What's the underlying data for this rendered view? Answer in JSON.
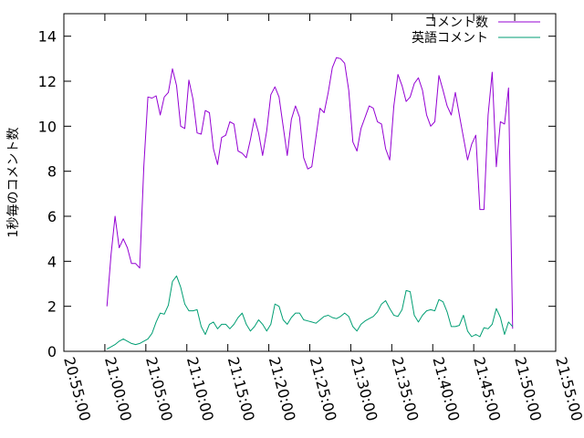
{
  "chart_data": {
    "type": "line",
    "title": "",
    "xlabel": "",
    "ylabel": "1秒毎のコメント数",
    "xlim": [
      "20:55:00",
      "21:55:00"
    ],
    "ylim": [
      0,
      15
    ],
    "x_ticks": [
      "20:55:00",
      "21:00:00",
      "21:05:00",
      "21:10:00",
      "21:15:00",
      "21:20:00",
      "21:25:00",
      "21:30:00",
      "21:35:00",
      "21:40:00",
      "21:45:00",
      "21:50:00",
      "21:55:00"
    ],
    "y_ticks": [
      "0",
      "2",
      "4",
      "6",
      "8",
      "10",
      "12",
      "14"
    ],
    "grid": false,
    "legend_position": "top-right",
    "series": [
      {
        "name": "コメント数",
        "color": "#9400d3",
        "points": [
          [
            "21:00:15",
            2.0
          ],
          [
            "21:00:45",
            4.3
          ],
          [
            "21:01:15",
            6.0
          ],
          [
            "21:01:45",
            4.6
          ],
          [
            "21:02:15",
            5.0
          ],
          [
            "21:02:45",
            4.6
          ],
          [
            "21:03:15",
            3.9
          ],
          [
            "21:03:45",
            3.9
          ],
          [
            "21:04:15",
            3.7
          ],
          [
            "21:04:45",
            8.2
          ],
          [
            "21:05:15",
            11.3
          ],
          [
            "21:05:45",
            11.25
          ],
          [
            "21:06:15",
            11.35
          ],
          [
            "21:06:45",
            10.5
          ],
          [
            "21:07:15",
            11.3
          ],
          [
            "21:07:45",
            11.5
          ],
          [
            "21:08:15",
            12.55
          ],
          [
            "21:08:45",
            11.8
          ],
          [
            "21:09:15",
            10.0
          ],
          [
            "21:09:45",
            9.9
          ],
          [
            "21:10:15",
            12.05
          ],
          [
            "21:10:45",
            11.2
          ],
          [
            "21:11:15",
            9.7
          ],
          [
            "21:11:45",
            9.65
          ],
          [
            "21:12:15",
            10.7
          ],
          [
            "21:12:45",
            10.6
          ],
          [
            "21:13:15",
            9.0
          ],
          [
            "21:13:45",
            8.3
          ],
          [
            "21:14:15",
            9.5
          ],
          [
            "21:14:45",
            9.6
          ],
          [
            "21:15:15",
            10.2
          ],
          [
            "21:15:45",
            10.1
          ],
          [
            "21:16:15",
            8.9
          ],
          [
            "21:16:45",
            8.8
          ],
          [
            "21:17:15",
            8.6
          ],
          [
            "21:17:45",
            9.4
          ],
          [
            "21:18:15",
            10.35
          ],
          [
            "21:18:45",
            9.7
          ],
          [
            "21:19:15",
            8.7
          ],
          [
            "21:19:45",
            9.8
          ],
          [
            "21:20:15",
            11.4
          ],
          [
            "21:20:45",
            11.75
          ],
          [
            "21:21:15",
            11.3
          ],
          [
            "21:21:45",
            10.0
          ],
          [
            "21:22:15",
            8.7
          ],
          [
            "21:22:45",
            10.3
          ],
          [
            "21:23:15",
            10.9
          ],
          [
            "21:23:45",
            10.4
          ],
          [
            "21:24:15",
            8.6
          ],
          [
            "21:24:45",
            8.1
          ],
          [
            "21:25:15",
            8.2
          ],
          [
            "21:25:45",
            9.5
          ],
          [
            "21:26:15",
            10.8
          ],
          [
            "21:26:45",
            10.6
          ],
          [
            "21:27:15",
            11.5
          ],
          [
            "21:27:45",
            12.6
          ],
          [
            "21:28:15",
            13.05
          ],
          [
            "21:28:45",
            13.0
          ],
          [
            "21:29:15",
            12.8
          ],
          [
            "21:29:45",
            11.6
          ],
          [
            "21:30:15",
            9.3
          ],
          [
            "21:30:45",
            8.9
          ],
          [
            "21:31:15",
            9.9
          ],
          [
            "21:31:45",
            10.4
          ],
          [
            "21:32:15",
            10.9
          ],
          [
            "21:32:45",
            10.8
          ],
          [
            "21:33:15",
            10.2
          ],
          [
            "21:33:45",
            10.1
          ],
          [
            "21:34:15",
            9.0
          ],
          [
            "21:34:45",
            8.5
          ],
          [
            "21:35:15",
            10.9
          ],
          [
            "21:35:45",
            12.3
          ],
          [
            "21:36:15",
            11.8
          ],
          [
            "21:36:45",
            11.1
          ],
          [
            "21:37:15",
            11.3
          ],
          [
            "21:37:45",
            11.9
          ],
          [
            "21:38:15",
            12.15
          ],
          [
            "21:38:45",
            11.6
          ],
          [
            "21:39:15",
            10.5
          ],
          [
            "21:39:45",
            10.0
          ],
          [
            "21:40:15",
            10.2
          ],
          [
            "21:40:45",
            12.25
          ],
          [
            "21:41:15",
            11.6
          ],
          [
            "21:41:45",
            10.9
          ],
          [
            "21:42:15",
            10.5
          ],
          [
            "21:42:45",
            11.5
          ],
          [
            "21:43:15",
            10.5
          ],
          [
            "21:43:45",
            9.5
          ],
          [
            "21:44:15",
            8.5
          ],
          [
            "21:44:45",
            9.2
          ],
          [
            "21:45:15",
            9.6
          ],
          [
            "21:45:45",
            6.3
          ],
          [
            "21:46:15",
            6.3
          ],
          [
            "21:46:45",
            10.5
          ],
          [
            "21:47:15",
            12.4
          ],
          [
            "21:47:45",
            8.2
          ],
          [
            "21:48:15",
            10.2
          ],
          [
            "21:48:45",
            10.1
          ],
          [
            "21:49:15",
            11.7
          ],
          [
            "21:49:45",
            1.0
          ]
        ]
      },
      {
        "name": "英語コメント",
        "color": "#009e73",
        "points": [
          [
            "21:00:15",
            0.1
          ],
          [
            "21:00:45",
            0.2
          ],
          [
            "21:01:15",
            0.3
          ],
          [
            "21:01:45",
            0.45
          ],
          [
            "21:02:15",
            0.55
          ],
          [
            "21:02:45",
            0.45
          ],
          [
            "21:03:15",
            0.35
          ],
          [
            "21:03:45",
            0.3
          ],
          [
            "21:04:15",
            0.35
          ],
          [
            "21:04:45",
            0.45
          ],
          [
            "21:05:15",
            0.55
          ],
          [
            "21:05:45",
            0.8
          ],
          [
            "21:06:15",
            1.3
          ],
          [
            "21:06:45",
            1.7
          ],
          [
            "21:07:15",
            1.65
          ],
          [
            "21:07:45",
            2.05
          ],
          [
            "21:08:15",
            3.1
          ],
          [
            "21:08:45",
            3.35
          ],
          [
            "21:09:15",
            2.85
          ],
          [
            "21:09:45",
            2.1
          ],
          [
            "21:10:15",
            1.8
          ],
          [
            "21:10:45",
            1.8
          ],
          [
            "21:11:15",
            1.85
          ],
          [
            "21:11:45",
            1.1
          ],
          [
            "21:12:15",
            0.75
          ],
          [
            "21:12:45",
            1.2
          ],
          [
            "21:13:15",
            1.3
          ],
          [
            "21:13:45",
            1.0
          ],
          [
            "21:14:15",
            1.2
          ],
          [
            "21:14:45",
            1.2
          ],
          [
            "21:15:15",
            1.0
          ],
          [
            "21:15:45",
            1.2
          ],
          [
            "21:16:15",
            1.5
          ],
          [
            "21:16:45",
            1.7
          ],
          [
            "21:17:15",
            1.2
          ],
          [
            "21:17:45",
            0.9
          ],
          [
            "21:18:15",
            1.1
          ],
          [
            "21:18:45",
            1.4
          ],
          [
            "21:19:15",
            1.2
          ],
          [
            "21:19:45",
            0.9
          ],
          [
            "21:20:15",
            1.2
          ],
          [
            "21:20:45",
            2.1
          ],
          [
            "21:21:15",
            2.0
          ],
          [
            "21:21:45",
            1.4
          ],
          [
            "21:22:15",
            1.2
          ],
          [
            "21:22:45",
            1.5
          ],
          [
            "21:23:15",
            1.7
          ],
          [
            "21:23:45",
            1.7
          ],
          [
            "21:24:15",
            1.4
          ],
          [
            "21:24:45",
            1.35
          ],
          [
            "21:25:15",
            1.3
          ],
          [
            "21:25:45",
            1.25
          ],
          [
            "21:26:15",
            1.4
          ],
          [
            "21:26:45",
            1.55
          ],
          [
            "21:27:15",
            1.6
          ],
          [
            "21:27:45",
            1.5
          ],
          [
            "21:28:15",
            1.45
          ],
          [
            "21:28:45",
            1.55
          ],
          [
            "21:29:15",
            1.7
          ],
          [
            "21:29:45",
            1.55
          ],
          [
            "21:30:15",
            1.1
          ],
          [
            "21:30:45",
            0.9
          ],
          [
            "21:31:15",
            1.2
          ],
          [
            "21:31:45",
            1.35
          ],
          [
            "21:32:15",
            1.45
          ],
          [
            "21:32:45",
            1.55
          ],
          [
            "21:33:15",
            1.75
          ],
          [
            "21:33:45",
            2.1
          ],
          [
            "21:34:15",
            2.25
          ],
          [
            "21:34:45",
            1.9
          ],
          [
            "21:35:15",
            1.6
          ],
          [
            "21:35:45",
            1.55
          ],
          [
            "21:36:15",
            1.85
          ],
          [
            "21:36:45",
            2.7
          ],
          [
            "21:37:15",
            2.65
          ],
          [
            "21:37:45",
            1.6
          ],
          [
            "21:38:15",
            1.3
          ],
          [
            "21:38:45",
            1.6
          ],
          [
            "21:39:15",
            1.8
          ],
          [
            "21:39:45",
            1.85
          ],
          [
            "21:40:15",
            1.8
          ],
          [
            "21:40:45",
            2.3
          ],
          [
            "21:41:15",
            2.2
          ],
          [
            "21:41:45",
            1.75
          ],
          [
            "21:42:15",
            1.1
          ],
          [
            "21:42:45",
            1.1
          ],
          [
            "21:43:15",
            1.15
          ],
          [
            "21:43:45",
            1.6
          ],
          [
            "21:44:15",
            0.9
          ],
          [
            "21:44:45",
            0.65
          ],
          [
            "21:45:15",
            0.75
          ],
          [
            "21:45:45",
            0.65
          ],
          [
            "21:46:15",
            1.05
          ],
          [
            "21:46:45",
            1.0
          ],
          [
            "21:47:15",
            1.2
          ],
          [
            "21:47:45",
            1.9
          ],
          [
            "21:48:15",
            1.5
          ],
          [
            "21:48:45",
            0.75
          ],
          [
            "21:49:15",
            1.3
          ],
          [
            "21:49:45",
            1.1
          ]
        ]
      }
    ]
  }
}
